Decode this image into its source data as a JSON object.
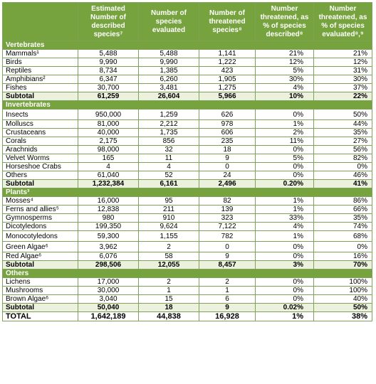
{
  "headers": [
    "",
    "Estimated Number of described species⁷",
    "Number of species evaluated",
    "Number of threatened species⁸",
    "Number threatened, as % of species described⁸",
    "Number threatened, as % of species evaluated⁸,⁹"
  ],
  "sections": [
    {
      "title": "Vertebrates",
      "rows": [
        [
          "Mammals¹",
          "5,488",
          "5,488",
          "1,141",
          "21%",
          "21%"
        ],
        [
          "Birds",
          "9,990",
          "9,990",
          "1,222",
          "12%",
          "12%"
        ],
        [
          "Reptiles",
          "8,734",
          "1,385",
          "423",
          "5%",
          "31%"
        ],
        [
          "Amphibians²",
          "6,347",
          "6,260",
          "1,905",
          "30%",
          "30%"
        ],
        [
          "Fishes",
          "30,700",
          "3,481",
          "1,275",
          "4%",
          "37%"
        ]
      ],
      "subtotal": [
        "Subtotal",
        "61,259",
        "26,604",
        "5,966",
        "10%",
        "22%"
      ]
    },
    {
      "title": "Invertebrates",
      "rows": [
        [
          "Insects",
          "950,000",
          "1,259",
          "626",
          "0%",
          "50%"
        ],
        [
          "Molluscs",
          "81,000",
          "2,212",
          "978",
          "1%",
          "44%"
        ],
        [
          "Crustaceans",
          "40,000",
          "1,735",
          "606",
          "2%",
          "35%"
        ],
        [
          "Corals",
          "2,175",
          "856",
          "235",
          "11%",
          "27%"
        ],
        [
          "Arachnids",
          "98,000",
          "32",
          "18",
          "0%",
          "56%"
        ],
        [
          "Velvet Worms",
          "165",
          "11",
          "9",
          "5%",
          "82%"
        ],
        [
          "Horseshoe Crabs",
          "4",
          "4",
          "0",
          "0%",
          "0%"
        ],
        [
          "Others",
          "61,040",
          "52",
          "24",
          "0%",
          "46%"
        ]
      ],
      "subtotal": [
        "Subtotal",
        "1,232,384",
        "6,161",
        "2,496",
        "0.20%",
        "41%"
      ]
    },
    {
      "title": "Plants³",
      "rows": [
        [
          "Mosses⁴",
          "16,000",
          "95",
          "82",
          "1%",
          "86%"
        ],
        [
          "Ferns and allies⁵",
          "12,838",
          "211",
          "139",
          "1%",
          "66%"
        ],
        [
          "Gymnosperms",
          "980",
          "910",
          "323",
          "33%",
          "35%"
        ],
        [
          "Dicotyledons",
          "199,350",
          "9,624",
          "7,122",
          "4%",
          "74%"
        ],
        [
          "Monocotyledons",
          "59,300",
          "1,155",
          "782",
          "1%",
          "68%"
        ],
        [
          "Green Algae⁶",
          "3,962",
          "2",
          "0",
          "0%",
          "0%"
        ],
        [
          "Red Algae⁶",
          "6,076",
          "58",
          "9",
          "0%",
          "16%"
        ]
      ],
      "subtotal": [
        "Subtotal",
        "298,506",
        "12,055",
        "8,457",
        "3%",
        "70%"
      ]
    },
    {
      "title": "Others",
      "rows": [
        [
          "Lichens",
          "17,000",
          "2",
          "2",
          "0%",
          "100%"
        ],
        [
          "Mushrooms",
          "30,000",
          "1",
          "1",
          "0%",
          "100%"
        ],
        [
          "Brown Algae⁶",
          "3,040",
          "15",
          "6",
          "0%",
          "40%"
        ]
      ],
      "subtotal": [
        "Subtotal",
        "50,040",
        "18",
        "9",
        "0.02%",
        "50%"
      ]
    }
  ],
  "total": [
    "TOTAL",
    "1,642,189",
    "44,838",
    "16,928",
    "1%",
    "38%"
  ],
  "colors": {
    "header_green": "#77a33f",
    "subtotal_fill": "#ebf1dd",
    "border": "#7fa25a"
  }
}
